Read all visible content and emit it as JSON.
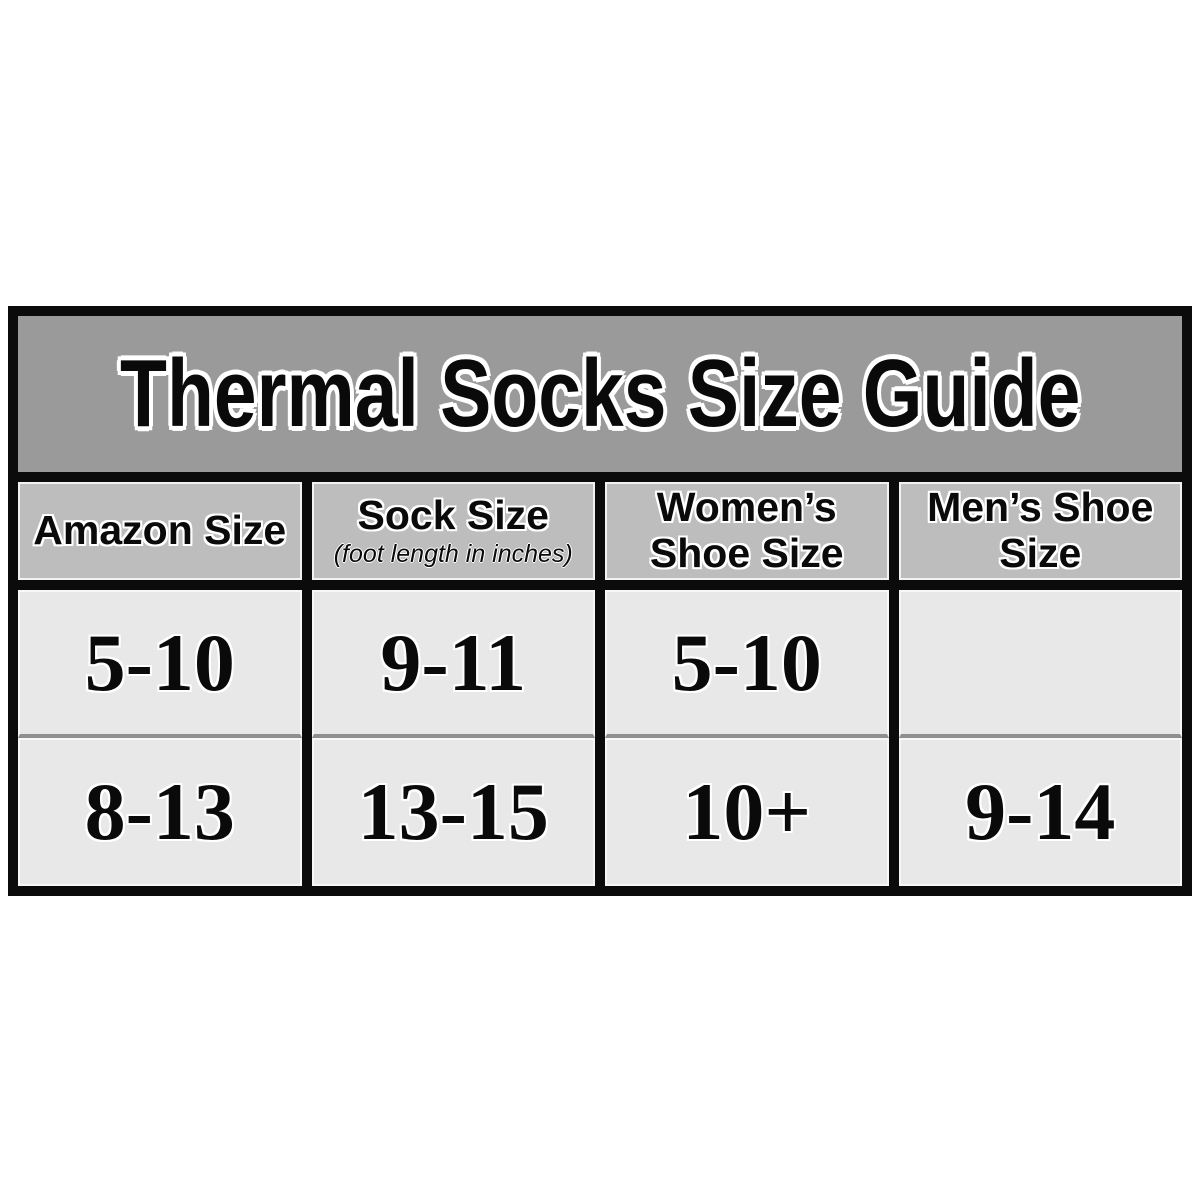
{
  "title": "Thermal Socks Size Guide",
  "colors": {
    "page-bg": "#ffffff",
    "border": "#0b0b0b",
    "title-bg": "#9a9a9a",
    "header-bg": "#bdbdbd",
    "cell-bg": "#e8e8e8",
    "row-divider": "#8f8f8f",
    "text": "#0a0a0a"
  },
  "header": {
    "cells": [
      {
        "label": "Amazon Size",
        "sublabel": ""
      },
      {
        "label": "Sock Size",
        "sublabel": "(foot length in inches)"
      },
      {
        "label": "Women’s Shoe Size",
        "sublabel": ""
      },
      {
        "label": "Men’s Shoe Size",
        "sublabel": ""
      }
    ]
  },
  "body": {
    "rows": [
      {
        "cells": [
          "5-10",
          "9-11",
          "5-10",
          ""
        ]
      },
      {
        "cells": [
          "8-13",
          "13-15",
          "10+",
          "9-14"
        ]
      }
    ]
  },
  "chart_data": {
    "type": "table",
    "title": "Thermal Socks Size Guide",
    "columns": [
      "Amazon Size",
      "Sock Size (foot length in inches)",
      "Women’s Shoe Size",
      "Men’s Shoe Size"
    ],
    "rows": [
      [
        "5-10",
        "9-11",
        "5-10",
        ""
      ],
      [
        "8-13",
        "13-15",
        "10+",
        "9-14"
      ]
    ]
  }
}
